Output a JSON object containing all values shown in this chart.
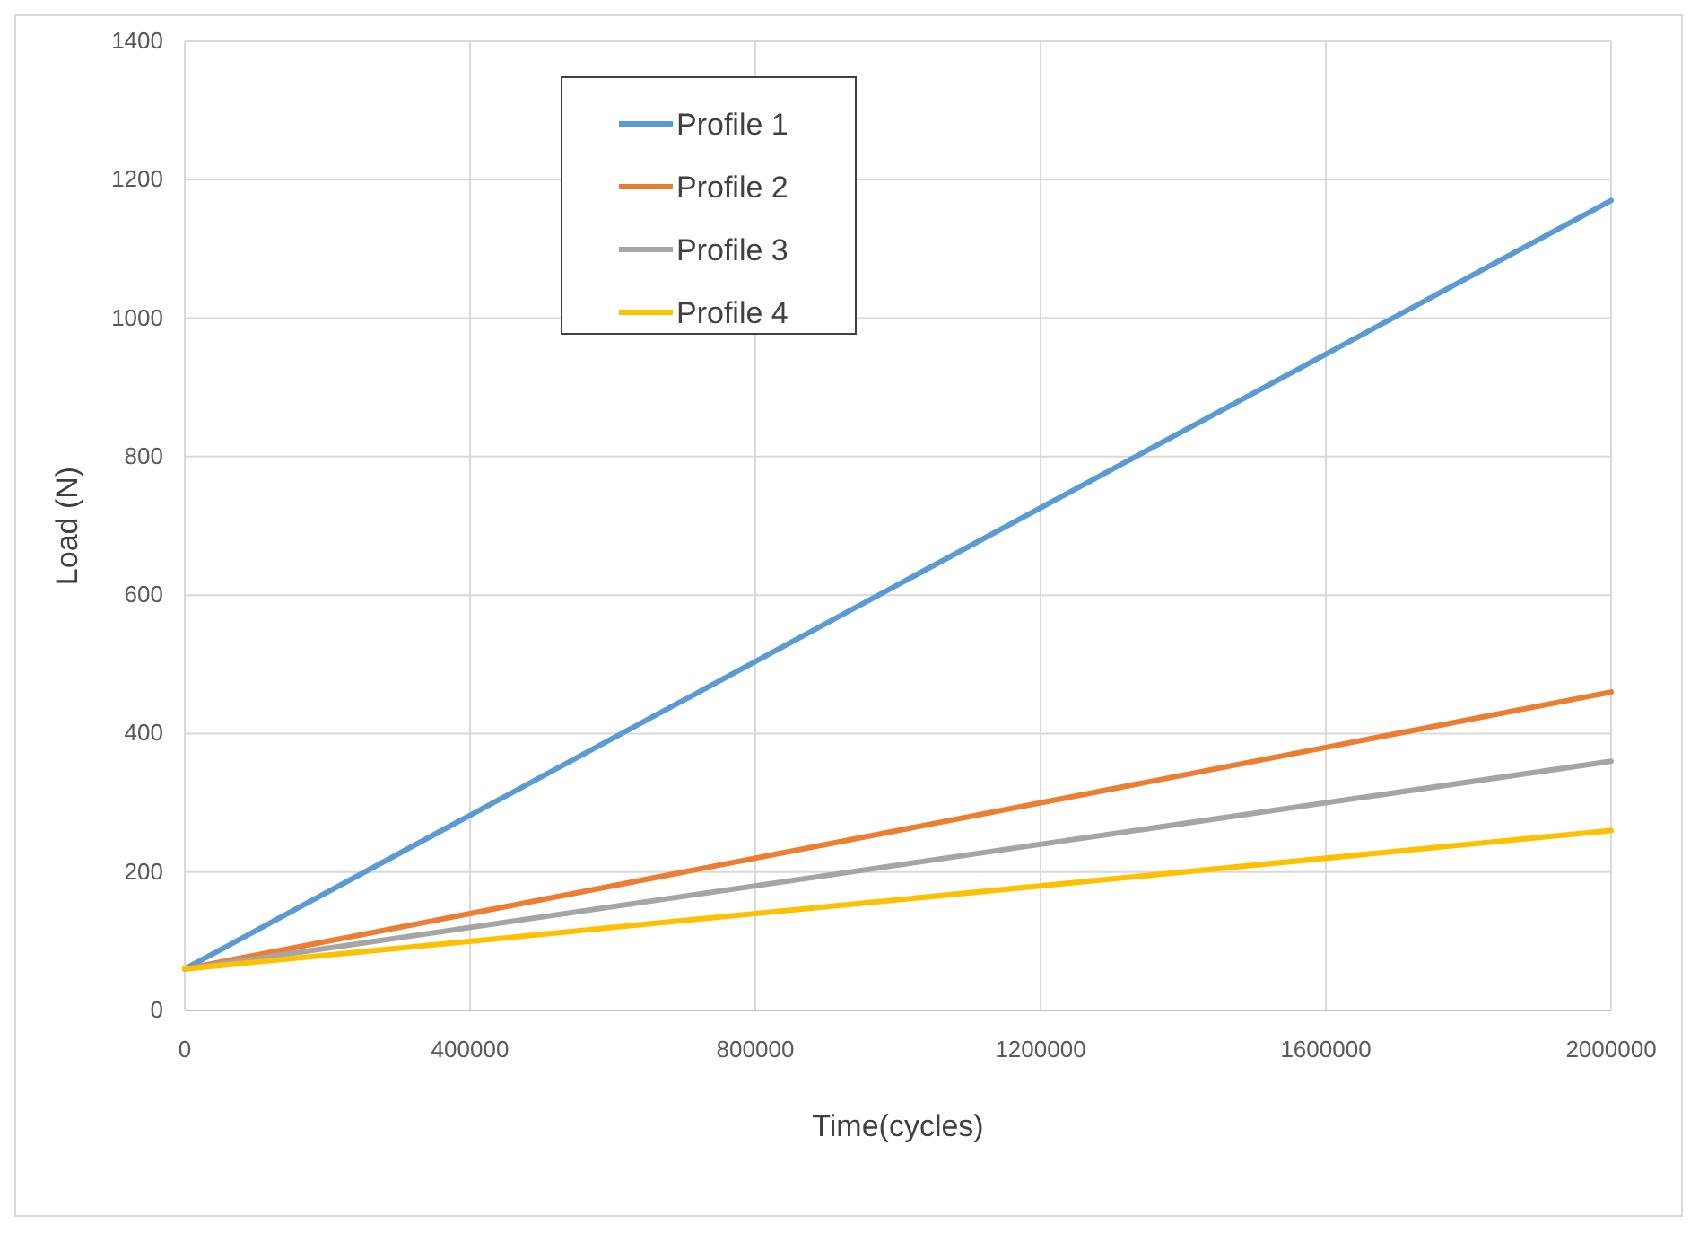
{
  "chart_data": {
    "type": "line",
    "xlabel": "Time(cycles)",
    "ylabel": "Load (N)",
    "x": [
      0,
      2000000
    ],
    "series": [
      {
        "name": "Profile 1",
        "color": "#5b9bd5",
        "values": [
          60,
          1170
        ]
      },
      {
        "name": "Profile 2",
        "color": "#ed7d31",
        "values": [
          60,
          460
        ]
      },
      {
        "name": "Profile 3",
        "color": "#a5a5a5",
        "values": [
          60,
          360
        ]
      },
      {
        "name": "Profile 4",
        "color": "#ffc000",
        "values": [
          60,
          260
        ]
      }
    ],
    "xlim": [
      0,
      2000000
    ],
    "xticks": [
      0,
      400000,
      800000,
      1200000,
      1600000,
      2000000
    ],
    "ylim": [
      0,
      1400
    ],
    "yticks": [
      0,
      200,
      400,
      600,
      800,
      1000,
      1200,
      1400
    ],
    "grid": true,
    "legend": "top",
    "marker": "none",
    "line_style": "solid"
  }
}
